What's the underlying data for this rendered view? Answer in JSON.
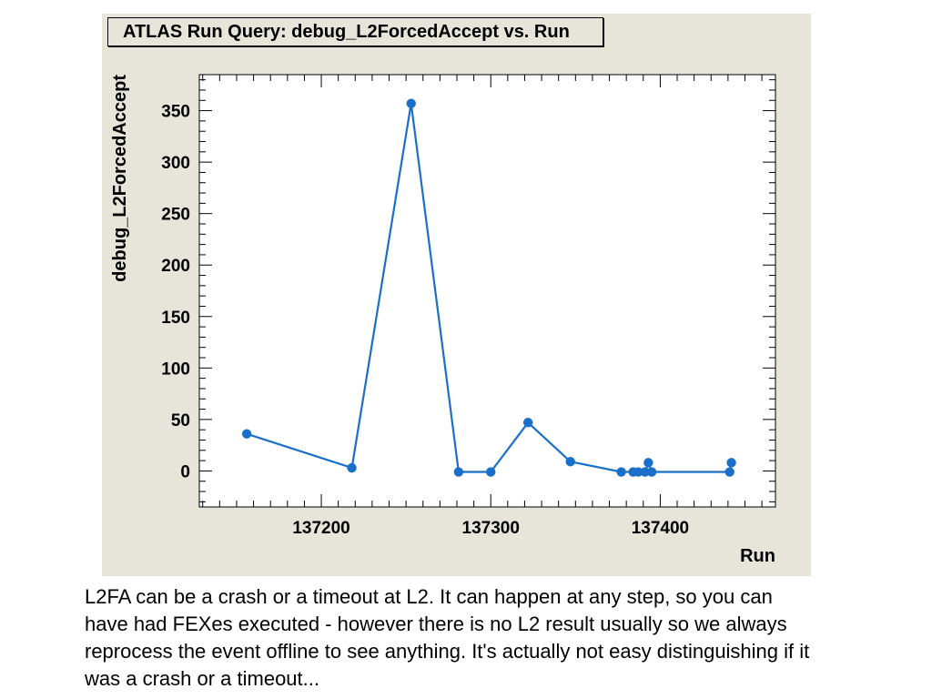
{
  "chart_data": {
    "type": "line",
    "title": "ATLAS Run Query: debug_L2ForcedAccept vs. Run",
    "xlabel": "Run",
    "ylabel": "debug_L2ForcedAccept",
    "xlim": [
      137128,
      137468
    ],
    "ylim": [
      -35,
      385
    ],
    "xticks": [
      137200,
      137300,
      137400
    ],
    "xtick_labels": [
      "137200",
      "137300",
      "137400"
    ],
    "yticks": [
      0,
      50,
      100,
      150,
      200,
      250,
      300,
      350
    ],
    "ytick_labels": [
      "0",
      "50",
      "100",
      "150",
      "200",
      "250",
      "300",
      "350"
    ],
    "x_minor_step": 10,
    "y_minor_step": 10,
    "grid": false,
    "legend": "none",
    "series": [
      {
        "color": "#1a6fc8",
        "points": [
          [
            137156,
            36
          ],
          [
            137218,
            3
          ],
          [
            137253,
            357
          ],
          [
            137281,
            -1
          ],
          [
            137300,
            -1
          ],
          [
            137322,
            47
          ],
          [
            137347,
            9
          ],
          [
            137377,
            -1
          ],
          [
            137384,
            -1
          ],
          [
            137387,
            -1
          ],
          [
            137391,
            -1
          ],
          [
            137393,
            8
          ],
          [
            137395,
            -1
          ],
          [
            137441,
            -1
          ],
          [
            137442,
            8
          ]
        ]
      }
    ]
  },
  "caption": "L2FA can be a crash or a timeout at L2. It can happen at any step, so you can have had FEXes executed - however there is no L2 result usually so we always reprocess the event offline to see anything. It's actually not easy distinguishing if it was a crash or a timeout..."
}
